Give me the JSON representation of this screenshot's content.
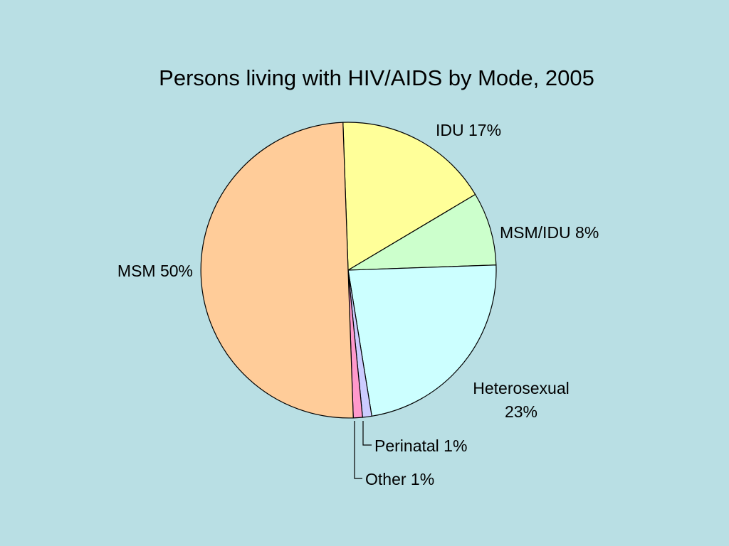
{
  "chart_data": {
    "type": "pie",
    "title": "Persons living with HIV/AIDS by Mode, 2005",
    "start_angle_deg": -92,
    "slices": [
      {
        "label": "IDU 17%",
        "value": 17,
        "color": "#ffff99"
      },
      {
        "label": "MSM/IDU 8%",
        "value": 8,
        "color": "#ccffcc"
      },
      {
        "label": "Heterosexual 23%",
        "label_lines": [
          "Heterosexual",
          "23%"
        ],
        "value": 23,
        "color": "#ccffff"
      },
      {
        "label": "Perinatal 1%",
        "value": 1,
        "color": "#ccccff"
      },
      {
        "label": "Other 1%",
        "value": 1,
        "color": "#ff99cc"
      },
      {
        "label": "MSM 50%",
        "value": 50,
        "color": "#ffcc99"
      }
    ]
  }
}
